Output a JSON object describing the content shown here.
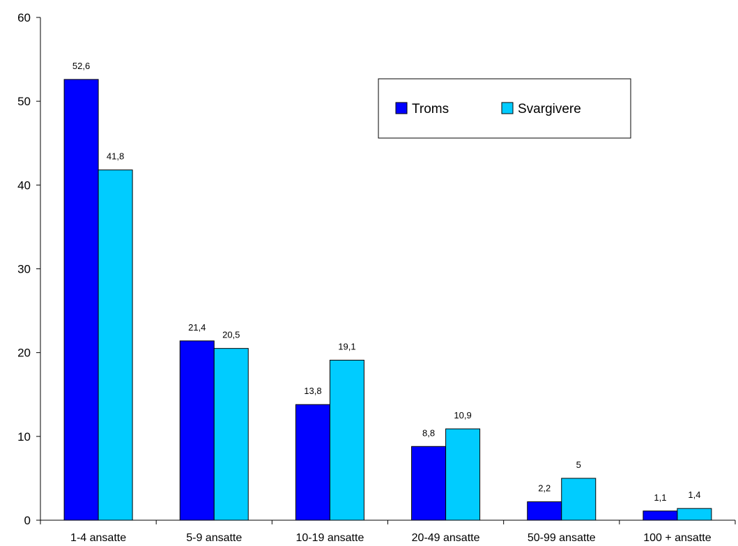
{
  "chart_data": {
    "type": "bar",
    "categories": [
      "1-4 ansatte",
      "5-9 ansatte",
      "10-19 ansatte",
      "20-49 ansatte",
      "50-99 ansatte",
      "100 + ansatte"
    ],
    "series": [
      {
        "name": "Troms",
        "color": "#0000ff",
        "values": [
          52.6,
          21.4,
          13.8,
          8.8,
          2.2,
          1.1
        ],
        "labels": [
          "52,6",
          "21,4",
          "13,8",
          "8,8",
          "2,2",
          "1,1"
        ]
      },
      {
        "name": "Svargivere",
        "color": "#00ccff",
        "values": [
          41.8,
          20.5,
          19.1,
          10.9,
          5,
          1.4
        ],
        "labels": [
          "41,8",
          "20,5",
          "19,1",
          "10,9",
          "5",
          "1,4"
        ]
      }
    ],
    "title": "",
    "xlabel": "",
    "ylabel": "",
    "ylim": [
      0,
      60
    ],
    "yticks": [
      0,
      10,
      20,
      30,
      40,
      50,
      60
    ],
    "grid": false,
    "legend": "top-right"
  }
}
